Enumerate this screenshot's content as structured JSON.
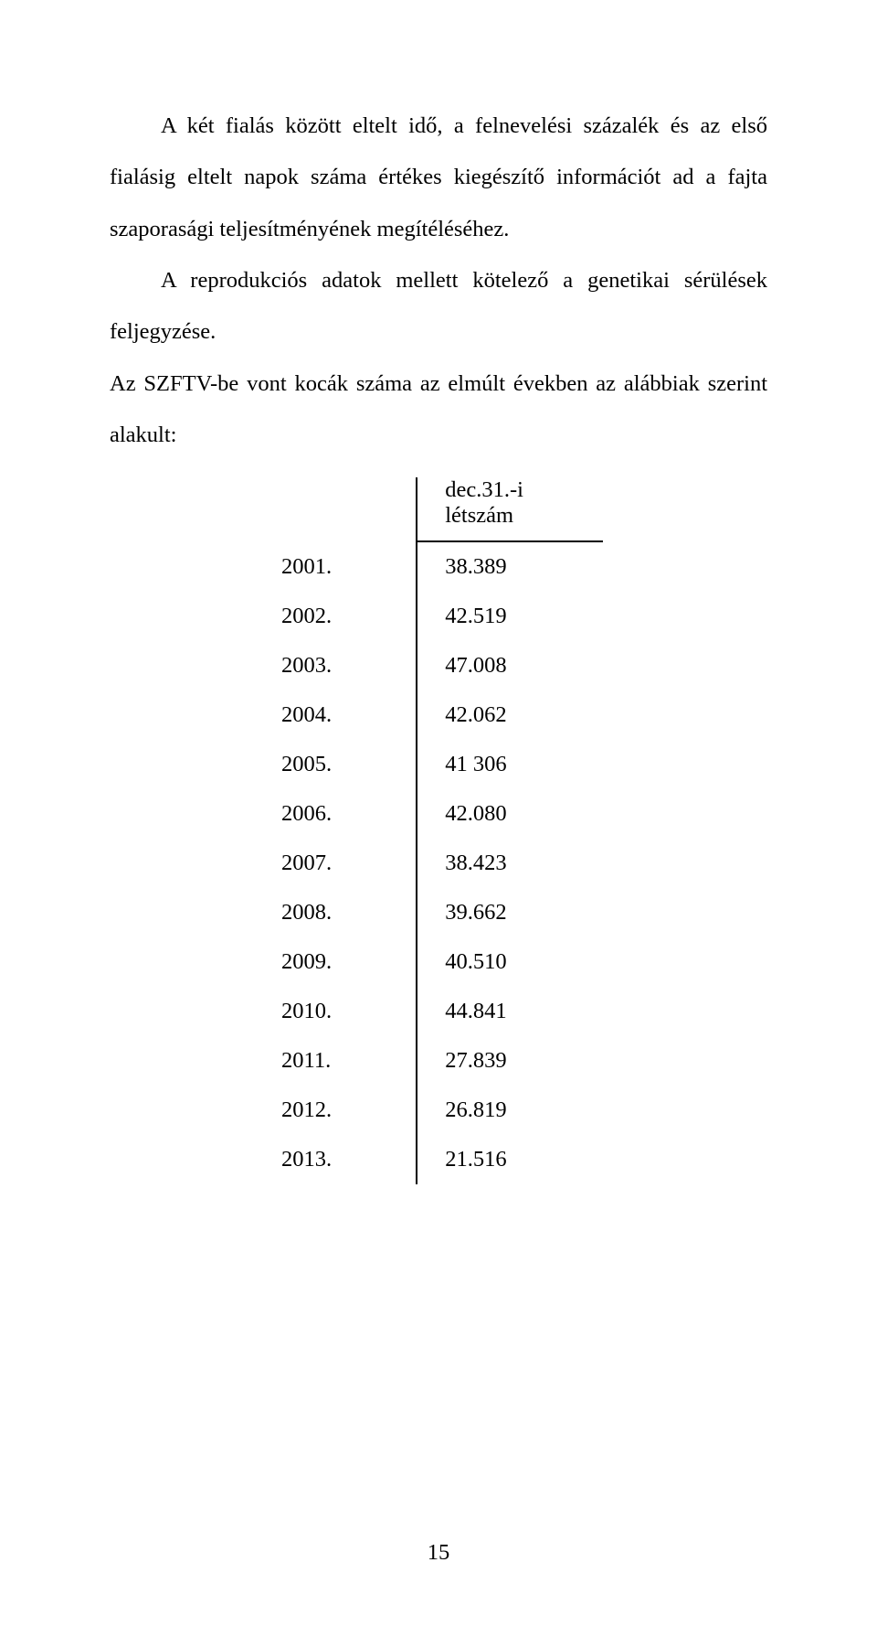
{
  "paragraphs": {
    "p1": "A két fialás között eltelt idő, a felnevelési százalék és az első fialásig eltelt napok száma értékes kiegészítő információt ad a fajta szaporasági teljesítményének megítéléséhez.",
    "p2": "A reprodukciós adatok mellett kötelező a genetikai sérülések feljegyzése.",
    "p3": "Az SZFTV-be vont kocák száma az elmúlt években az alábbiak szerint alakult:"
  },
  "table": {
    "header": "dec.31.-i létszám",
    "rows": [
      {
        "year": "2001.",
        "value": "38.389"
      },
      {
        "year": "2002.",
        "value": "42.519"
      },
      {
        "year": "2003.",
        "value": "47.008"
      },
      {
        "year": "2004.",
        "value": "42.062"
      },
      {
        "year": "2005.",
        "value": "41 306"
      },
      {
        "year": "2006.",
        "value": "42.080"
      },
      {
        "year": "2007.",
        "value": "38.423"
      },
      {
        "year": "2008.",
        "value": "39.662"
      },
      {
        "year": "2009.",
        "value": "40.510"
      },
      {
        "year": "2010.",
        "value": "44.841"
      },
      {
        "year": "2011.",
        "value": "27.839"
      },
      {
        "year": "2012.",
        "value": "26.819"
      },
      {
        "year": "2013.",
        "value": "21.516"
      }
    ]
  },
  "pageNumber": "15",
  "colors": {
    "text": "#000000",
    "background": "#ffffff",
    "rule": "#000000"
  }
}
